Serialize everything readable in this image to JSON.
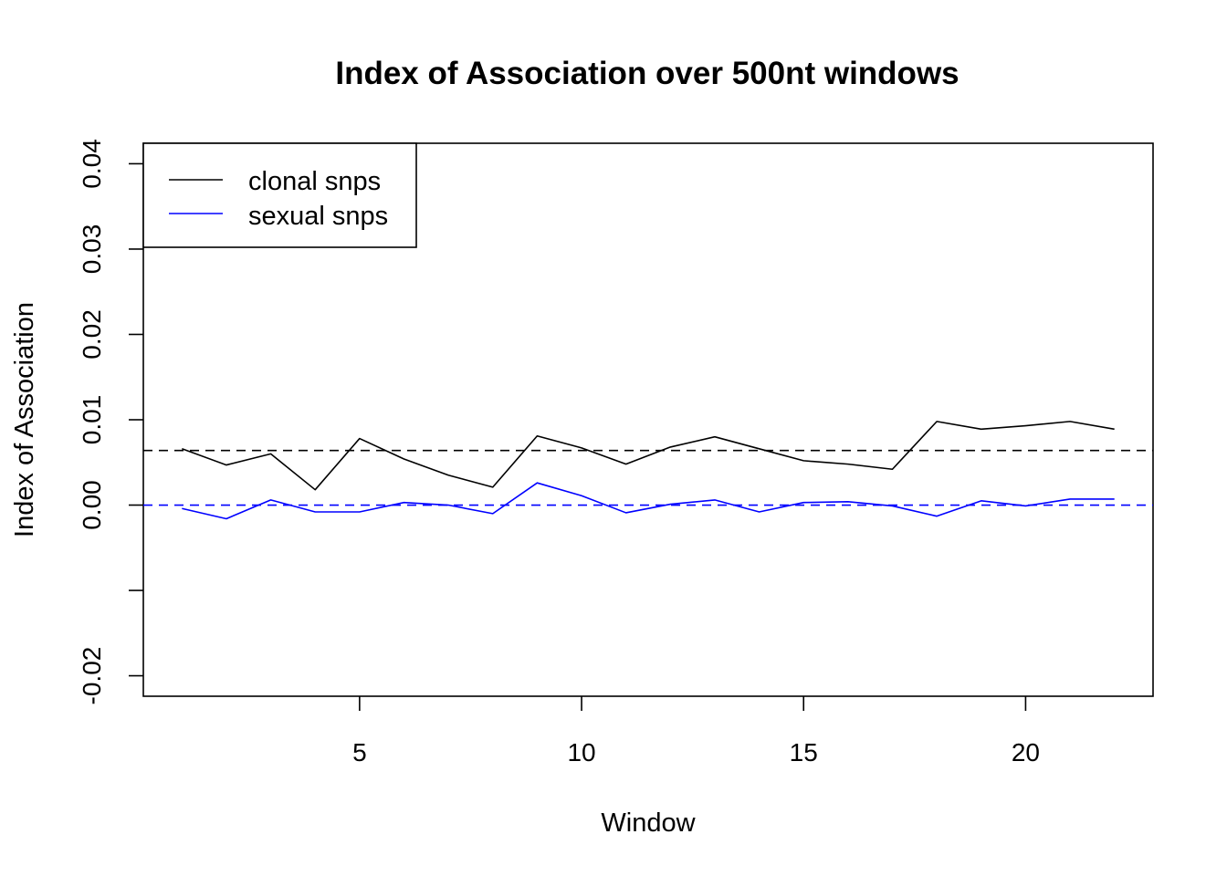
{
  "chart_data": {
    "type": "line",
    "title": "Index of Association over 500nt windows",
    "xlabel": "Window",
    "ylabel": "Index of Association",
    "x": [
      1,
      2,
      3,
      4,
      5,
      6,
      7,
      8,
      9,
      10,
      11,
      12,
      13,
      14,
      15,
      16,
      17,
      18,
      19,
      20,
      21,
      22
    ],
    "xlim": [
      0.13,
      22.87
    ],
    "ylim": [
      -0.0224,
      0.0424
    ],
    "x_ticks": [
      5,
      10,
      15,
      20
    ],
    "x_tick_labels": [
      "5",
      "10",
      "15",
      "20"
    ],
    "y_ticks": [
      -0.02,
      -0.01,
      0.0,
      0.01,
      0.02,
      0.03,
      0.04
    ],
    "y_tick_labels": [
      "-0.02",
      "",
      "0.00",
      "0.01",
      "0.02",
      "0.03",
      "0.04"
    ],
    "series": [
      {
        "name": "clonal snps",
        "color": "#000000",
        "values": [
          0.0066,
          0.0047,
          0.006,
          0.0018,
          0.0078,
          0.0054,
          0.0035,
          0.0021,
          0.0081,
          0.0067,
          0.0048,
          0.0068,
          0.008,
          0.0066,
          0.0052,
          0.0048,
          0.0042,
          0.0098,
          0.0089,
          0.0093,
          0.0098,
          0.0089
        ]
      },
      {
        "name": "sexual snps",
        "color": "#0000ff",
        "values": [
          -0.0004,
          -0.0016,
          0.0006,
          -0.0008,
          -0.0008,
          0.0003,
          0.0,
          -0.001,
          0.0026,
          0.0011,
          -0.0009,
          0.0001,
          0.0006,
          -0.0008,
          0.0003,
          0.0004,
          -0.0001,
          -0.0013,
          0.0005,
          -0.0001,
          0.0007,
          0.0007
        ]
      }
    ],
    "reference_lines": [
      {
        "y": 0.0064,
        "color": "#000000",
        "style": "dashed"
      },
      {
        "y": 0.0,
        "color": "#0000ff",
        "style": "dashed"
      }
    ],
    "grid": false,
    "legend": {
      "position": "top-left",
      "entries": [
        "clonal snps",
        "sexual snps"
      ]
    }
  }
}
